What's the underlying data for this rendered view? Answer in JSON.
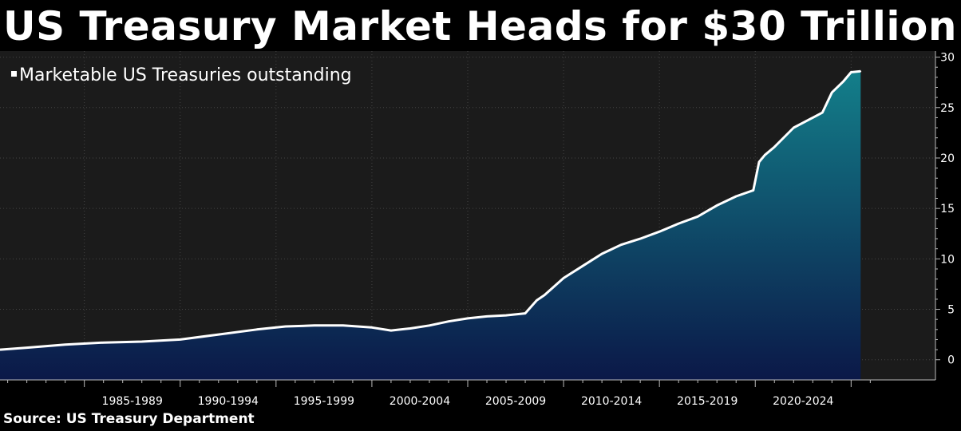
{
  "title": "US Treasury Market Heads for $30 Trillion",
  "source": "Source: US Treasury Department",
  "colors": {
    "background": "#1b1b1b",
    "line": "#ffffff",
    "area_top": "#137f8a",
    "area_bottom": "#0b1848",
    "grid": "#444444"
  },
  "chart_data": {
    "type": "area",
    "legend_position": "top-left",
    "grid": true,
    "x_range": [
      1980.6,
      2029.4
    ],
    "ylim": [
      -2,
      30.6
    ],
    "yticks": [
      0,
      5,
      10,
      15,
      20,
      25,
      30
    ],
    "xtick_boundaries": [
      1985,
      1990,
      1995,
      2000,
      2005,
      2010,
      2015,
      2020,
      2025
    ],
    "xtick_labels": [
      "1985-1989",
      "1990-1994",
      "1995-1999",
      "2000-2004",
      "2005-2009",
      "2010-2014",
      "2015-2019",
      "2020-2024"
    ],
    "series": [
      {
        "name": "Marketable US Treasuries outstanding",
        "x": [
          1980.6,
          1982.0,
          1984.0,
          1986.0,
          1988.0,
          1990.0,
          1992.0,
          1994.0,
          1995.5,
          1997.0,
          1998.5,
          2000.0,
          2001.0,
          2002.0,
          2003.0,
          2004.0,
          2005.0,
          2006.0,
          2007.0,
          2008.0,
          2008.6,
          2009.0,
          2010.0,
          2011.0,
          2012.0,
          2013.0,
          2014.0,
          2015.0,
          2016.0,
          2017.0,
          2018.0,
          2019.0,
          2019.9,
          2020.2,
          2020.5,
          2021.0,
          2022.0,
          2023.0,
          2023.5,
          2024.0,
          2024.6,
          2025.0,
          2025.5
        ],
        "y": [
          1.0,
          1.2,
          1.5,
          1.7,
          1.8,
          2.0,
          2.5,
          3.0,
          3.3,
          3.4,
          3.4,
          3.2,
          2.9,
          3.1,
          3.4,
          3.8,
          4.1,
          4.3,
          4.4,
          4.6,
          5.9,
          6.4,
          8.1,
          9.3,
          10.5,
          11.4,
          12.0,
          12.7,
          13.5,
          14.2,
          15.3,
          16.2,
          16.8,
          19.6,
          20.3,
          21.1,
          23.0,
          24.0,
          24.5,
          26.5,
          27.6,
          28.5,
          28.6
        ]
      }
    ]
  }
}
